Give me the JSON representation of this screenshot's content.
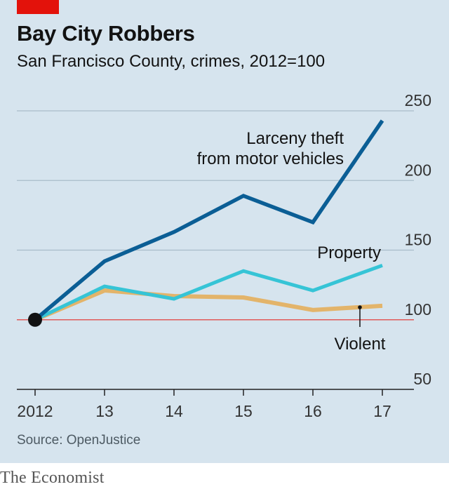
{
  "title": "Bay City Robbers",
  "subtitle": "San Francisco County, crimes, 2012=100",
  "source": "Source: OpenJustice",
  "brand": "The Economist",
  "colors": {
    "background": "#d6e4ee",
    "accent_red": "#e3120b",
    "larceny": "#0b5e95",
    "property": "#36c4d6",
    "violent": "#e3b46a",
    "baseline": "#e05a5a",
    "grid": "#a9bcc9"
  },
  "chart_data": {
    "type": "line",
    "x": [
      "2012",
      "13",
      "14",
      "15",
      "16",
      "17"
    ],
    "ylim": [
      50,
      250
    ],
    "yticks": [
      "250",
      "200",
      "150",
      "100",
      "50"
    ],
    "ytick_values": [
      250,
      200,
      150,
      100,
      50
    ],
    "reference_line": 100,
    "grid": true,
    "series": [
      {
        "name": "Larceny theft from motor vehicles",
        "label_lines": [
          "Larceny theft",
          "from motor vehicles"
        ],
        "values": [
          100,
          142,
          163,
          189,
          170,
          243
        ]
      },
      {
        "name": "Property",
        "label_lines": [
          "Property"
        ],
        "values": [
          100,
          124,
          115,
          135,
          121,
          139
        ]
      },
      {
        "name": "Violent",
        "label_lines": [
          "Violent"
        ],
        "values": [
          100,
          121,
          117,
          116,
          107,
          110
        ]
      }
    ]
  }
}
